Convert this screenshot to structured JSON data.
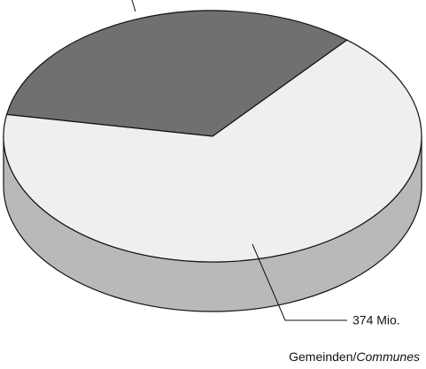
{
  "chart_data": {
    "type": "pie3d",
    "values": [
      187,
      374
    ],
    "value_labels": [
      null,
      "374 Mio."
    ],
    "colors": [
      "#707070",
      "#efefef"
    ],
    "side_color": "#b9b9b9",
    "title_parts": [
      "Gemeinden",
      "/",
      "Communes"
    ]
  }
}
